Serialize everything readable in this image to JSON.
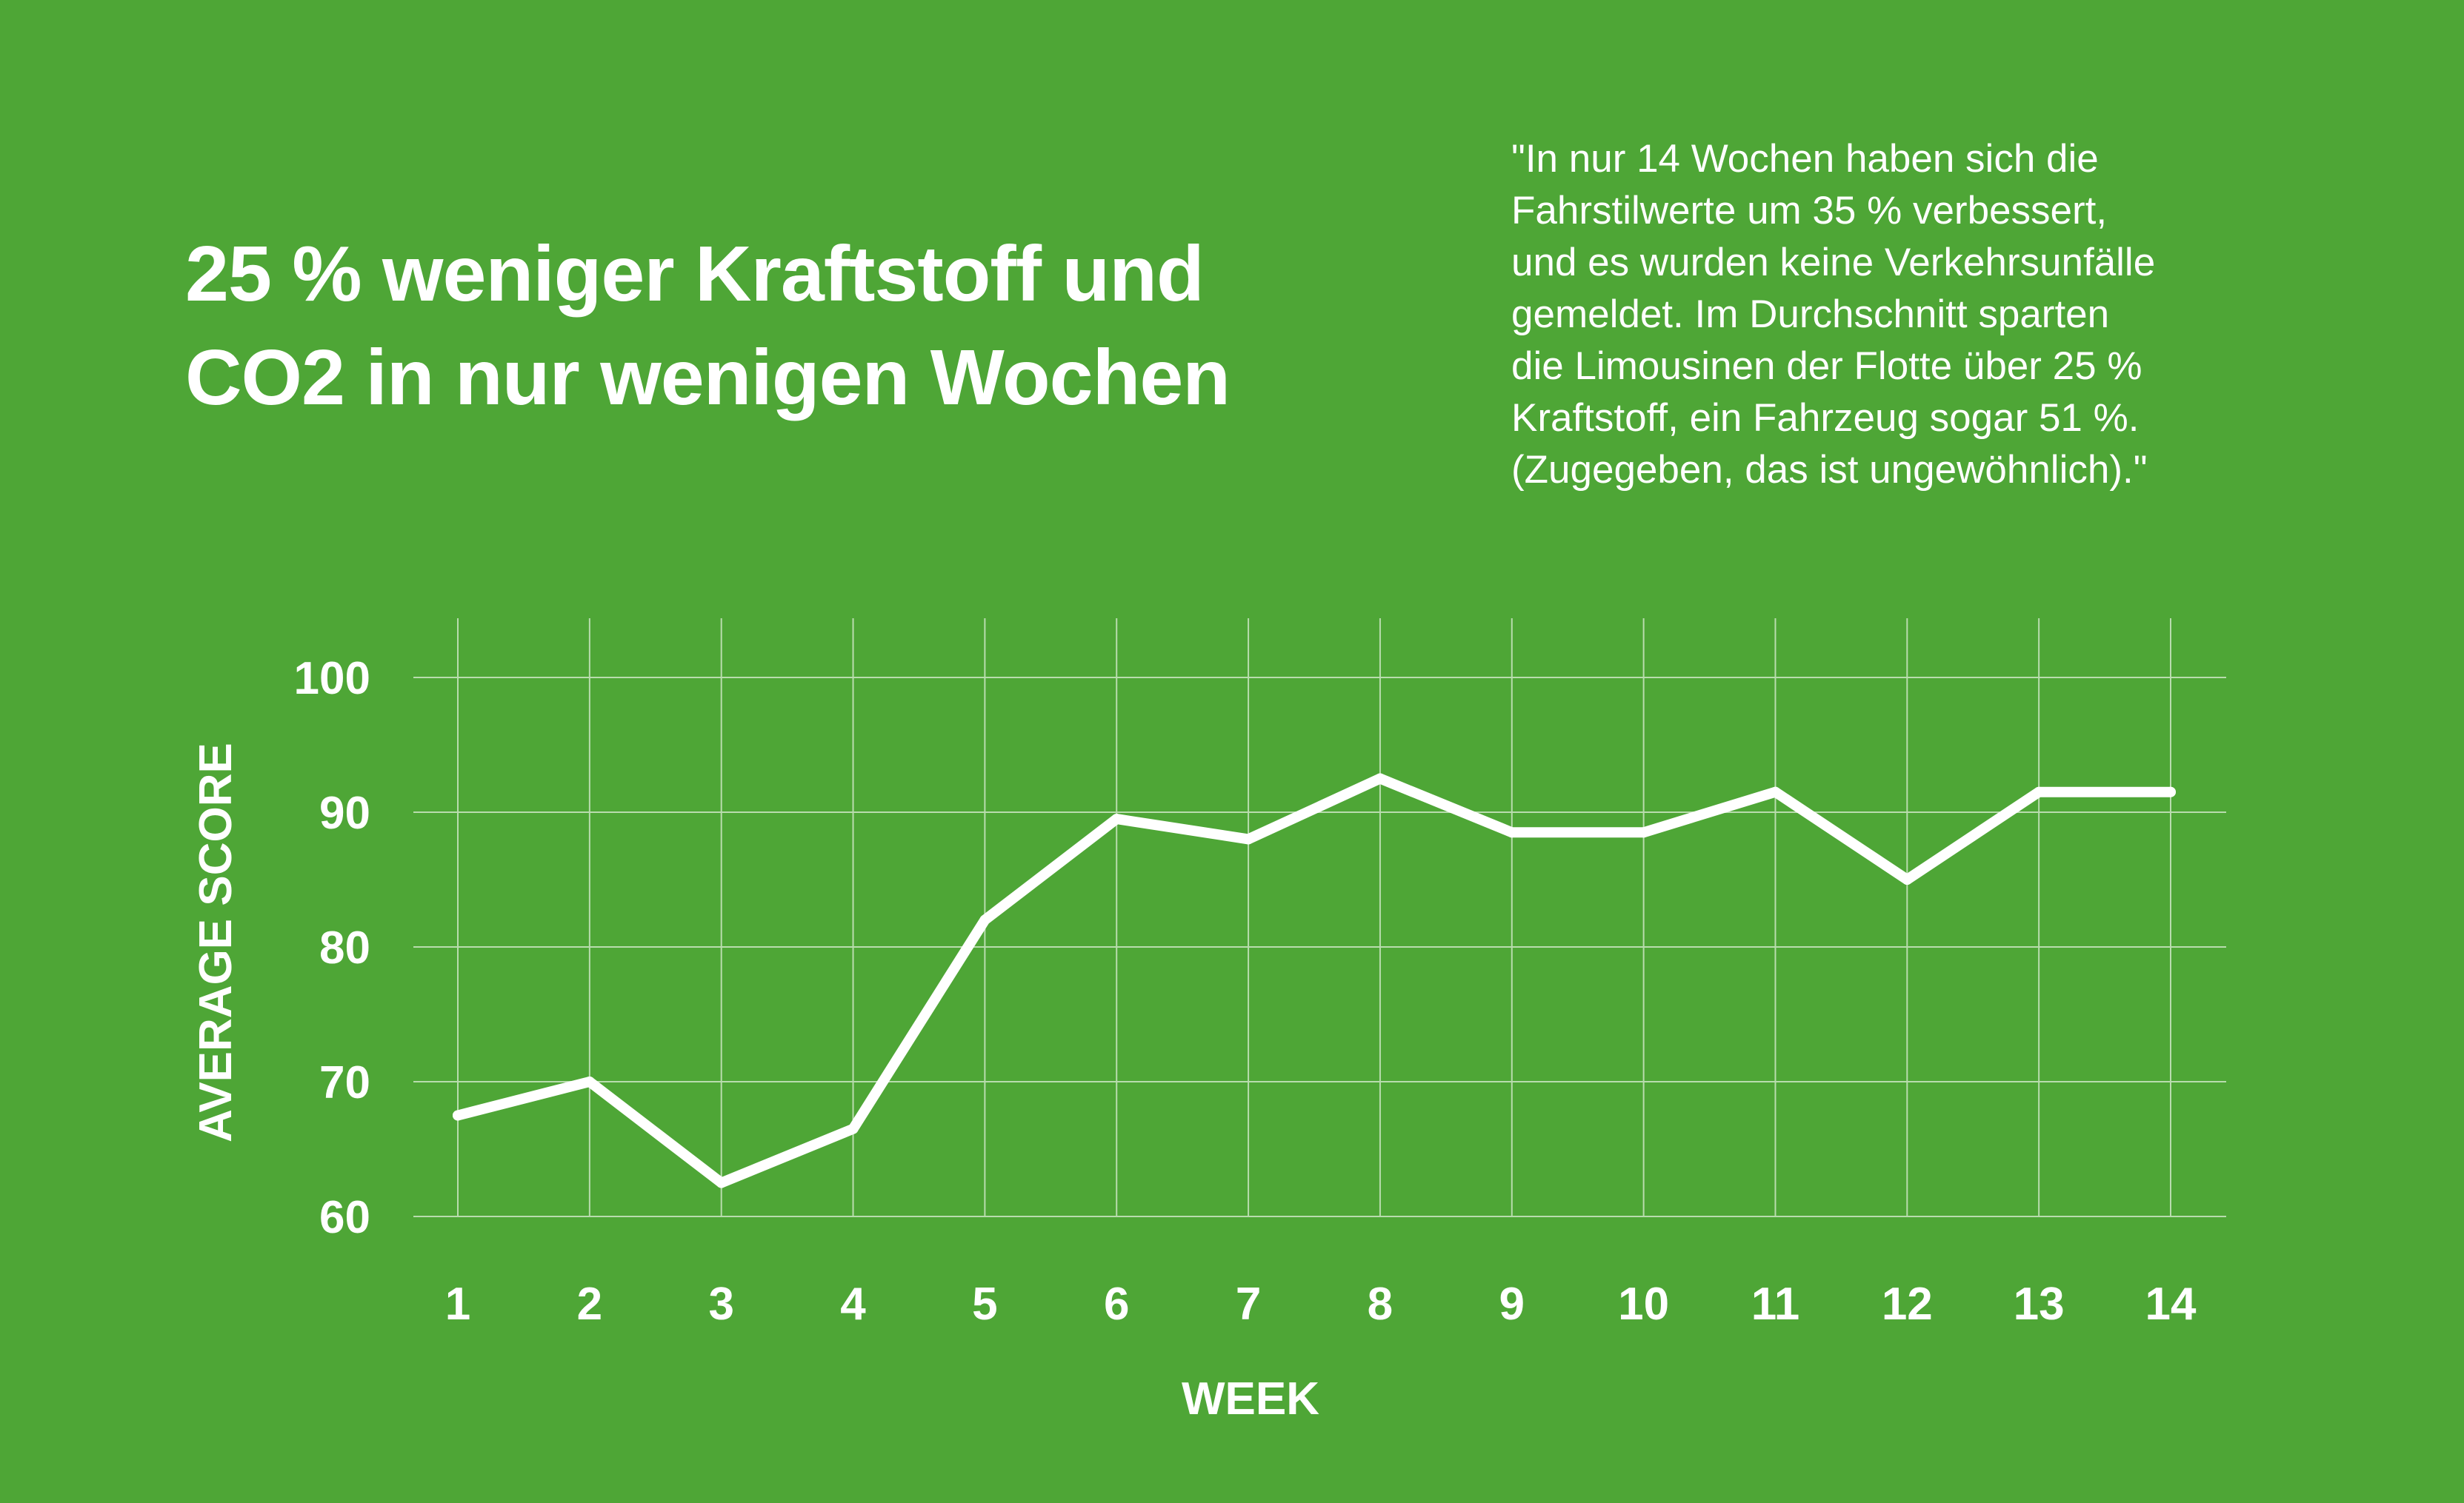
{
  "title": {
    "line1": "25 % weniger Kraftstoff und",
    "line2": "CO2 in nur wenigen Wochen"
  },
  "quote": {
    "lines": [
      "\"In nur 14 Wochen haben sich die",
      "Fahrstilwerte um 35 % verbessert,",
      "und es wurden keine Verkehrsunfälle",
      "gemeldet. Im Durchschnitt sparten",
      "die Limousinen der Flotte über 25 %",
      "Kraftstoff, ein Fahrzeug sogar 51 %.",
      "(Zugegeben, das ist ungewöhnlich).\""
    ]
  },
  "colors": {
    "background": "#4ea636",
    "line": "#ffffff",
    "grid": "#b9dcae"
  },
  "chart_data": {
    "type": "line",
    "xlabel": "WEEK",
    "ylabel": "AVERAGE SCORE",
    "x": [
      1,
      2,
      3,
      4,
      5,
      6,
      7,
      8,
      9,
      10,
      11,
      12,
      13,
      14
    ],
    "series": [
      {
        "values": [
          67.5,
          70,
          62.5,
          66.5,
          82,
          89.5,
          88,
          92.5,
          88.5,
          88.5,
          91.5,
          85,
          91.5,
          91.5
        ]
      }
    ],
    "yticks": [
      60,
      70,
      80,
      90,
      100
    ],
    "xticks": [
      "1",
      "2",
      "3",
      "4",
      "5",
      "6",
      "7",
      "8",
      "9",
      "10",
      "11",
      "12",
      "13",
      "14"
    ],
    "ylim": [
      60,
      100
    ],
    "grid": true
  }
}
